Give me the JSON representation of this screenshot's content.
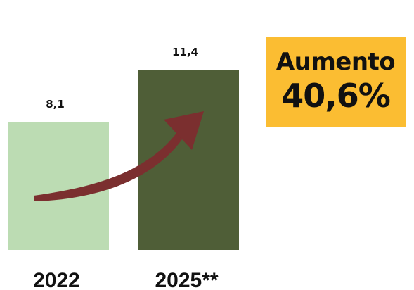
{
  "colors": {
    "bar_2022": "#bcdcb3",
    "bar_2025": "#4f5e37",
    "arrow": "#7b2f2f",
    "badge": "#fbbd32",
    "text": "#111111"
  },
  "badge": {
    "label": "Aumento",
    "value": "40,6%"
  },
  "chart_data": {
    "type": "bar",
    "categories": [
      "2022",
      "2025**"
    ],
    "values": [
      8.1,
      11.4
    ],
    "value_labels": [
      "8,1",
      "11,4"
    ],
    "title": "",
    "xlabel": "",
    "ylabel": "",
    "ylim": [
      0,
      11.4
    ],
    "grid": false,
    "annotations": [
      "growth-arrow"
    ]
  }
}
